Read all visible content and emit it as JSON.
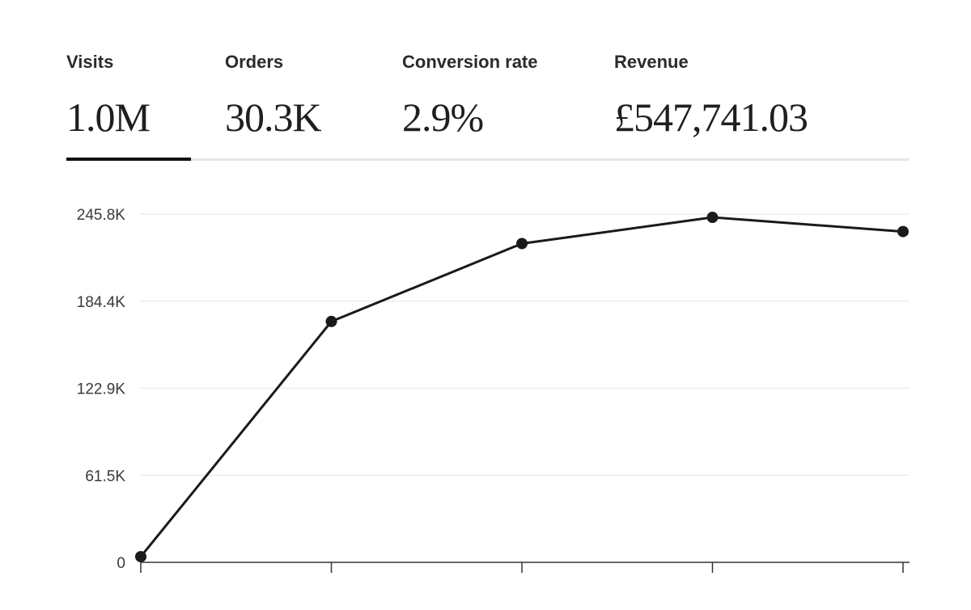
{
  "metrics": {
    "visits": {
      "label": "Visits",
      "value": "1.0M"
    },
    "orders": {
      "label": "Orders",
      "value": "30.3K"
    },
    "conversion_rate": {
      "label": "Conversion rate",
      "value": "2.9%"
    },
    "revenue": {
      "label": "Revenue",
      "value": "£547,741.03"
    },
    "active": "visits"
  },
  "colors": {
    "line": "#1a1a1a",
    "grid": "#ececec",
    "axis": "#333333",
    "active_tab": "#111111"
  },
  "chart_data": {
    "type": "line",
    "title": "",
    "xlabel": "",
    "ylabel": "",
    "x": [
      0,
      1,
      2,
      3,
      4
    ],
    "x_tick_labels": [
      "",
      "",
      "",
      "",
      ""
    ],
    "series": [
      {
        "values": [
          4000,
          170000,
          225000,
          243500,
          233500
        ]
      }
    ],
    "ylim": [
      0,
      245800
    ],
    "y_ticks": [
      0,
      61450,
      122900,
      184350,
      245800
    ],
    "y_tick_labels": [
      "0",
      "61.5K",
      "122.9K",
      "184.4K",
      "245.8K"
    ],
    "grid": true,
    "legend": "none",
    "markers": true
  }
}
